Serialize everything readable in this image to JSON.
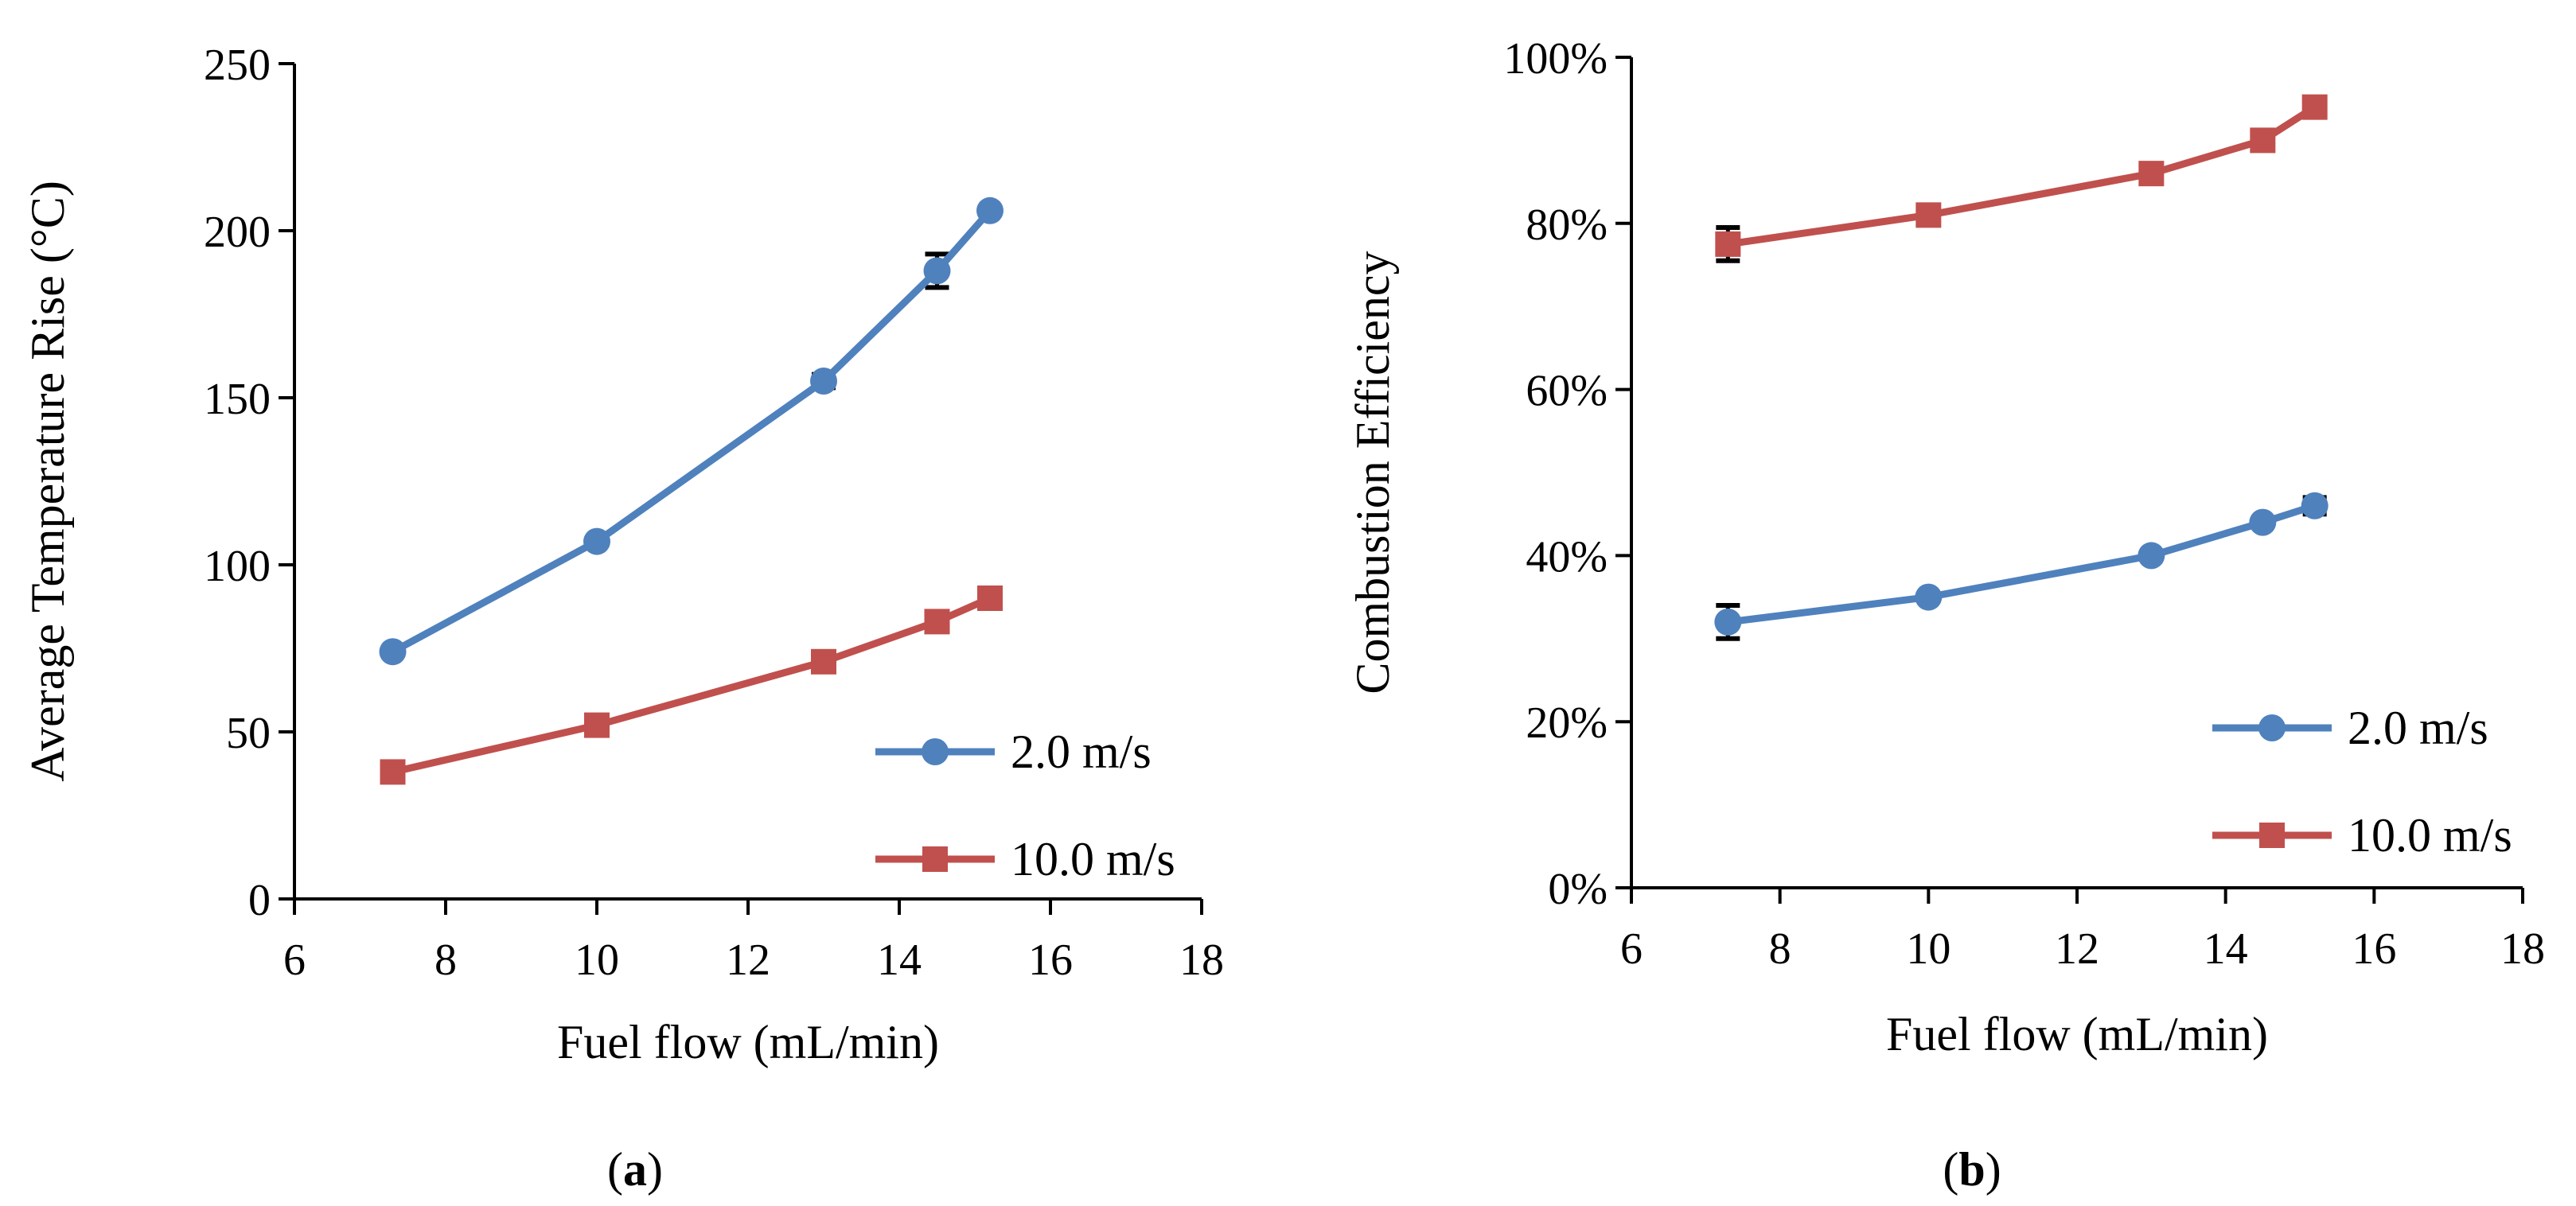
{
  "chart_data": [
    {
      "type": "line",
      "panel_label": "a",
      "title": "",
      "xlabel": "Fuel flow (mL/min)",
      "ylabel": "Average Temperature Rise (°C)",
      "xlim": [
        6,
        18
      ],
      "ylim": [
        0,
        250
      ],
      "xticks": [
        6,
        8,
        10,
        12,
        14,
        16,
        18
      ],
      "yticks": [
        0,
        50,
        100,
        150,
        200,
        250
      ],
      "ytick_format": "number",
      "legend_position": "bottom-right",
      "series": [
        {
          "name": "2.0 m/s",
          "color": "#4f81bd",
          "marker": "circle",
          "x": [
            7.3,
            10,
            13,
            14.5,
            15.2
          ],
          "y": [
            74,
            107,
            155,
            188,
            206
          ],
          "error": [
            0,
            0,
            2,
            5,
            0
          ]
        },
        {
          "name": "10.0 m/s",
          "color": "#c0504d",
          "marker": "square",
          "x": [
            7.3,
            10,
            13,
            14.5,
            15.2
          ],
          "y": [
            38,
            52,
            71,
            83,
            90
          ],
          "error": [
            0,
            0,
            0,
            0,
            0
          ]
        }
      ]
    },
    {
      "type": "line",
      "panel_label": "b",
      "title": "",
      "xlabel": "Fuel flow (mL/min)",
      "ylabel": "Combustion Efficiency",
      "xlim": [
        6,
        18
      ],
      "ylim": [
        0,
        100
      ],
      "xticks": [
        6,
        8,
        10,
        12,
        14,
        16,
        18
      ],
      "yticks": [
        0,
        20,
        40,
        60,
        80,
        100
      ],
      "ytick_format": "percent",
      "legend_position": "bottom-right",
      "series": [
        {
          "name": "2.0 m/s",
          "color": "#4f81bd",
          "marker": "circle",
          "x": [
            7.3,
            10,
            13,
            14.5,
            15.2
          ],
          "y": [
            32,
            35,
            40,
            44,
            46
          ],
          "error": [
            2,
            0,
            0,
            0,
            1
          ]
        },
        {
          "name": "10.0 m/s",
          "color": "#c0504d",
          "marker": "square",
          "x": [
            7.3,
            10,
            13,
            14.5,
            15.2
          ],
          "y": [
            77.5,
            81,
            86,
            90,
            94
          ],
          "error": [
            2,
            0,
            0,
            0,
            0
          ]
        }
      ]
    }
  ],
  "captions": [
    "a",
    "b"
  ]
}
